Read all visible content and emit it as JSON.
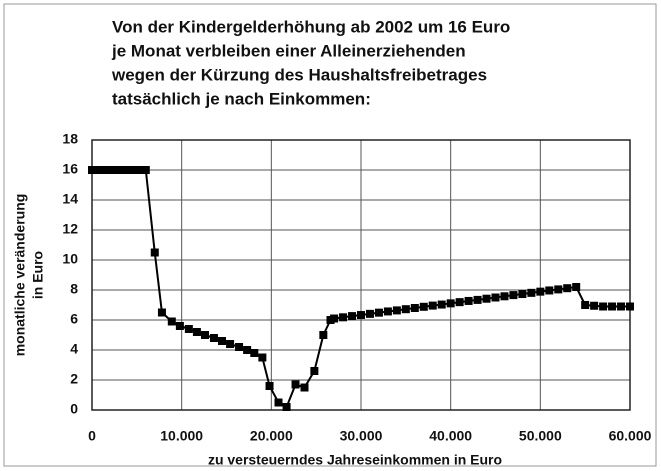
{
  "chart_data": {
    "type": "line",
    "title": [
      "Von der Kindergelderhöhung ab 2002 um 16 Euro",
      "je Monat verbleiben einer Alleinerziehenden",
      "wegen der Kürzung des Haushaltsfreibetrages",
      "tatsächlich je nach Einkommen:"
    ],
    "x_label": "zu versteuerndes Jahreseinkommen in Euro",
    "y_label": [
      "monatliche veränderung",
      "in Euro"
    ],
    "x": [
      0,
      500,
      1000,
      1500,
      2000,
      2500,
      3000,
      3500,
      4000,
      4500,
      5000,
      5500,
      6000,
      7000,
      7800,
      8900,
      9800,
      10800,
      11700,
      12600,
      13600,
      14500,
      15400,
      16400,
      17300,
      18100,
      19000,
      19800,
      20800,
      21700,
      22700,
      23700,
      24800,
      25800,
      26600,
      27000,
      28000,
      29000,
      30000,
      31000,
      32000,
      33000,
      34000,
      35000,
      36000,
      37000,
      38000,
      39000,
      40000,
      41000,
      42000,
      43000,
      44000,
      45000,
      46000,
      47000,
      48000,
      49000,
      50000,
      51000,
      52000,
      53000,
      54000,
      55000,
      56000,
      57000,
      58000,
      59000,
      60000
    ],
    "series": [
      {
        "name": "monatliche Veränderung",
        "color": "#000000",
        "values": [
          16,
          16,
          16,
          16,
          16,
          16,
          16,
          16,
          16,
          16,
          16,
          16,
          16,
          10.5,
          6.5,
          5.9,
          5.6,
          5.4,
          5.2,
          5.0,
          4.8,
          4.6,
          4.4,
          4.2,
          4.0,
          3.8,
          3.5,
          1.6,
          0.5,
          0.2,
          1.7,
          1.5,
          2.6,
          5.0,
          6.0,
          6.1,
          6.18,
          6.26,
          6.33,
          6.41,
          6.49,
          6.57,
          6.64,
          6.72,
          6.8,
          6.88,
          6.96,
          7.03,
          7.11,
          7.19,
          7.27,
          7.34,
          7.42,
          7.5,
          7.58,
          7.66,
          7.73,
          7.81,
          7.89,
          7.97,
          8.04,
          8.12,
          8.2,
          7.0,
          6.95,
          6.9,
          6.9,
          6.9,
          6.9
        ]
      }
    ],
    "xlim": [
      0,
      60000
    ],
    "xticks": [
      0,
      {
        "value": 10000,
        "label": "10.000"
      },
      {
        "value": 20000,
        "label": "20.000"
      },
      {
        "value": 30000,
        "label": "30.000"
      },
      {
        "value": 40000,
        "label": "40.000"
      },
      {
        "value": 50000,
        "label": "50.000"
      },
      {
        "value": 60000,
        "label": "60.000"
      }
    ],
    "ylim": [
      0,
      18
    ],
    "yticks": [
      0,
      2,
      4,
      6,
      8,
      10,
      12,
      14,
      16,
      18
    ],
    "grid": true
  }
}
